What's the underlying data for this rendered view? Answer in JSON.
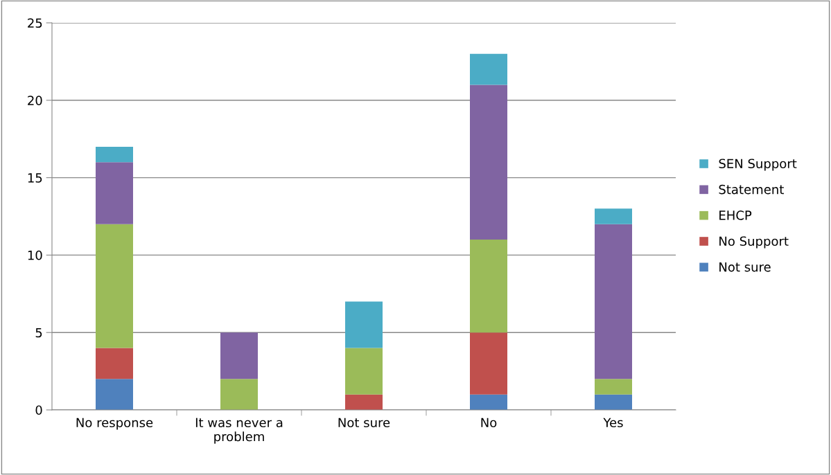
{
  "chart_data": {
    "type": "bar",
    "stacked": true,
    "categories": [
      "No response",
      "It was never a problem",
      "Not sure",
      "No",
      "Yes"
    ],
    "series": [
      {
        "name": "Not sure",
        "color": "#4f81bd",
        "values": [
          2,
          0,
          0,
          1,
          1
        ]
      },
      {
        "name": "No Support",
        "color": "#c0504d",
        "values": [
          2,
          0,
          1,
          4,
          0
        ]
      },
      {
        "name": "EHCP",
        "color": "#9bbb59",
        "values": [
          8,
          2,
          3,
          6,
          1
        ]
      },
      {
        "name": "Statement",
        "color": "#8064a2",
        "values": [
          4,
          3,
          0,
          10,
          10
        ]
      },
      {
        "name": "SEN Support",
        "color": "#4bacc6",
        "values": [
          1,
          0,
          3,
          2,
          1
        ]
      }
    ],
    "ylim": [
      0,
      25
    ],
    "yticks": [
      0,
      5,
      10,
      15,
      20,
      25
    ],
    "grid": "y",
    "legend": "right"
  }
}
